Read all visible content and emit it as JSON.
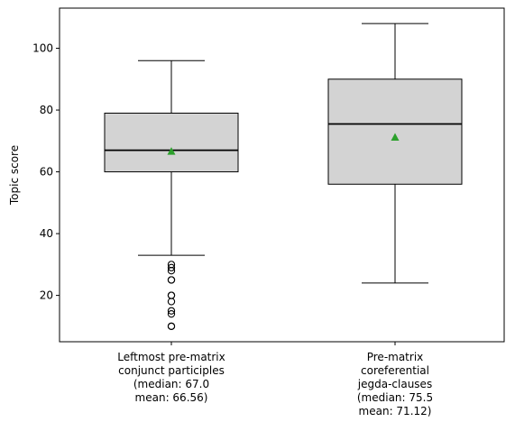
{
  "chart_data": {
    "type": "box",
    "ylabel": "Topic score",
    "ylim": [
      5,
      113
    ],
    "yticks": [
      20,
      40,
      60,
      80,
      100
    ],
    "grid": false,
    "colors": {
      "box_fill": "#d3d3d3",
      "median": "#000000",
      "mean_marker": "#2ca02c",
      "outlier": "#000000"
    },
    "boxes": [
      {
        "label_lines": [
          "Leftmost pre-matrix",
          "conjunct participles",
          "(median: 67.0",
          "mean: 66.56)"
        ],
        "whisker_low": 33,
        "q1": 60,
        "median": 67.0,
        "q3": 79,
        "whisker_high": 96,
        "mean": 66.56,
        "outliers": [
          10,
          10,
          14,
          15,
          18,
          20,
          20,
          25,
          25,
          28,
          29,
          30
        ]
      },
      {
        "label_lines": [
          "Pre-matrix",
          "coreferential",
          "jegda-clauses",
          "(median: 75.5",
          "mean: 71.12)"
        ],
        "whisker_low": 24,
        "q1": 56,
        "median": 75.5,
        "q3": 90,
        "whisker_high": 108,
        "mean": 71.12,
        "outliers": []
      }
    ]
  }
}
